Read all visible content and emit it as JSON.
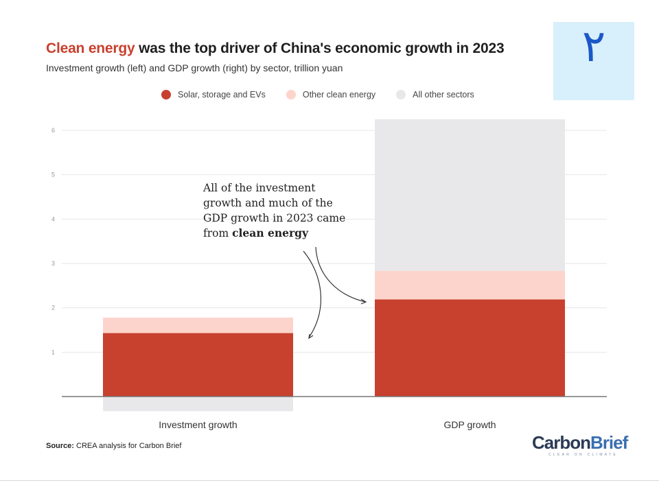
{
  "header": {
    "title_highlight": "Clean energy",
    "title_rest": " was the top driver of China's economic growth in 2023",
    "subtitle": "Investment growth (left) and GDP growth (right) by sector, trillion yuan"
  },
  "badge": {
    "text": "٢"
  },
  "legend": [
    {
      "label": "Solar, storage and EVs",
      "color": "#c8402e"
    },
    {
      "label": "Other clean energy",
      "color": "#fdd4cc"
    },
    {
      "label": "All other sectors",
      "color": "#e8e8ea"
    }
  ],
  "annotation": {
    "lines": [
      "All of the investment",
      "growth and much of the",
      "GDP growth in 2023 came"
    ],
    "last_prefix": "from ",
    "last_bold": "clean energy"
  },
  "footer": {
    "source_label": "Source:",
    "source_text": " CREA analysis for Carbon Brief"
  },
  "logo": {
    "carbon": "Carbon",
    "brief": "Brief",
    "tagline": "CLEAR ON CLIMATE"
  },
  "chart_data": {
    "type": "bar",
    "stacked": true,
    "categories": [
      "Investment growth",
      "GDP growth"
    ],
    "series": [
      {
        "name": "Solar, storage and EVs",
        "values": [
          1.43,
          2.19
        ],
        "color": "#c8402e"
      },
      {
        "name": "Other clean energy",
        "values": [
          0.35,
          0.64
        ],
        "color": "#fdd4cc"
      },
      {
        "name": "All other sectors",
        "values": [
          -0.33,
          3.42
        ],
        "color": "#e8e8ea"
      }
    ],
    "ylim": [
      0,
      6
    ],
    "yticks": [
      1,
      2,
      3,
      4,
      5,
      6
    ],
    "grid": true,
    "legend_position": "top"
  }
}
